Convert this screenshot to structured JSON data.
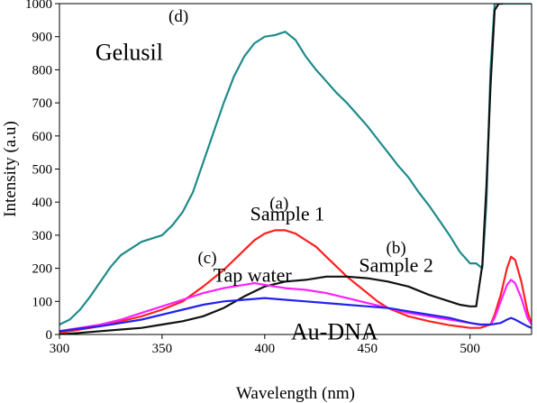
{
  "chart_data": {
    "type": "line",
    "xlabel": "Wavelength (nm)",
    "ylabel": "Intensity (a.u)",
    "xlim": [
      300,
      530
    ],
    "ylim": [
      0,
      1000
    ],
    "xticks": [
      300,
      350,
      400,
      450,
      500
    ],
    "yticks": [
      0,
      100,
      200,
      300,
      400,
      500,
      600,
      700,
      800,
      900,
      1000
    ],
    "grid": false,
    "legend": "none",
    "series": [
      {
        "name": "Gelusil",
        "color": "#1f8a8a",
        "x": [
          300,
          305,
          310,
          315,
          320,
          325,
          330,
          335,
          340,
          345,
          350,
          355,
          360,
          365,
          370,
          375,
          380,
          385,
          390,
          395,
          400,
          405,
          410,
          415,
          420,
          425,
          430,
          435,
          440,
          445,
          450,
          455,
          460,
          465,
          470,
          475,
          480,
          485,
          490,
          495,
          500,
          503,
          506,
          508,
          510,
          512,
          515,
          518,
          520,
          522,
          525,
          527,
          530
        ],
        "y": [
          30,
          45,
          75,
          115,
          160,
          205,
          240,
          260,
          280,
          290,
          300,
          330,
          370,
          430,
          520,
          610,
          700,
          780,
          840,
          880,
          900,
          905,
          915,
          890,
          840,
          800,
          765,
          730,
          700,
          665,
          630,
          590,
          550,
          510,
          475,
          430,
          390,
          345,
          300,
          250,
          215,
          215,
          200,
          400,
          800,
          1000,
          1000,
          1000,
          1000,
          1000,
          1000,
          1000,
          1000
        ]
      },
      {
        "name": "Sample 1",
        "color": "#ff2020",
        "x": [
          300,
          310,
          320,
          330,
          340,
          350,
          360,
          370,
          380,
          390,
          395,
          400,
          405,
          410,
          415,
          420,
          425,
          430,
          435,
          440,
          445,
          450,
          455,
          460,
          470,
          480,
          490,
          500,
          505,
          510,
          512,
          515,
          518,
          520,
          522,
          525,
          528,
          530
        ],
        "y": [
          5,
          15,
          25,
          40,
          55,
          75,
          100,
          145,
          195,
          255,
          285,
          305,
          315,
          315,
          305,
          285,
          265,
          235,
          205,
          175,
          150,
          125,
          100,
          80,
          55,
          40,
          28,
          20,
          20,
          30,
          60,
          120,
          200,
          235,
          225,
          160,
          70,
          30
        ]
      },
      {
        "name": "Sample 2",
        "color": "#111111",
        "x": [
          300,
          310,
          320,
          330,
          340,
          350,
          360,
          370,
          380,
          390,
          400,
          410,
          420,
          430,
          440,
          450,
          460,
          470,
          480,
          490,
          495,
          500,
          503,
          506,
          508,
          510,
          512,
          514,
          516
        ],
        "y": [
          0,
          5,
          10,
          15,
          20,
          30,
          40,
          55,
          80,
          115,
          145,
          160,
          165,
          175,
          175,
          170,
          160,
          145,
          120,
          100,
          90,
          85,
          85,
          210,
          450,
          750,
          980,
          1000,
          1000
        ]
      },
      {
        "name": "Tap water",
        "color": "#ff20ff",
        "x": [
          300,
          310,
          320,
          330,
          340,
          350,
          360,
          370,
          380,
          390,
          395,
          400,
          405,
          410,
          420,
          430,
          440,
          450,
          460,
          470,
          480,
          490,
          500,
          505,
          510,
          512,
          515,
          518,
          520,
          522,
          525,
          528,
          530
        ],
        "y": [
          10,
          20,
          30,
          45,
          65,
          85,
          105,
          125,
          140,
          150,
          155,
          150,
          145,
          140,
          135,
          125,
          110,
          95,
          80,
          65,
          55,
          45,
          35,
          30,
          30,
          50,
          100,
          150,
          165,
          155,
          110,
          50,
          30
        ]
      },
      {
        "name": "Au-DNA",
        "color": "#2222ee",
        "x": [
          300,
          310,
          320,
          330,
          340,
          350,
          360,
          370,
          380,
          390,
          400,
          410,
          420,
          430,
          440,
          450,
          460,
          470,
          480,
          490,
          500,
          505,
          510,
          515,
          518,
          520,
          522,
          525,
          528,
          530
        ],
        "y": [
          10,
          18,
          25,
          35,
          45,
          60,
          75,
          90,
          100,
          105,
          110,
          105,
          100,
          95,
          90,
          85,
          80,
          70,
          60,
          50,
          35,
          30,
          30,
          35,
          45,
          50,
          45,
          35,
          25,
          20
        ]
      }
    ],
    "annotations": [
      {
        "id": "gelusil-label",
        "text": "Gelusil",
        "letter": "(d)",
        "x": 334,
        "y": 830,
        "letter_x": 358,
        "letter_y": 945,
        "size": "large"
      },
      {
        "id": "sample1-label",
        "text": "Sample 1",
        "letter": "(a)",
        "x": 411,
        "y": 345,
        "letter_x": 407,
        "letter_y": 380,
        "size": "medium"
      },
      {
        "id": "sample2-label",
        "text": "Sample 2",
        "letter": "(b)",
        "x": 464,
        "y": 190,
        "letter_x": 464,
        "letter_y": 245,
        "size": "medium"
      },
      {
        "id": "tapwater-label",
        "text": "Tap water",
        "letter": "(c)",
        "x": 394,
        "y": 160,
        "letter_x": 372,
        "letter_y": 215,
        "size": "medium"
      },
      {
        "id": "audna-label",
        "text": "Au-DNA",
        "letter": "",
        "x": 434,
        "y": -15,
        "letter_x": 0,
        "letter_y": 0,
        "size": "large"
      }
    ]
  }
}
